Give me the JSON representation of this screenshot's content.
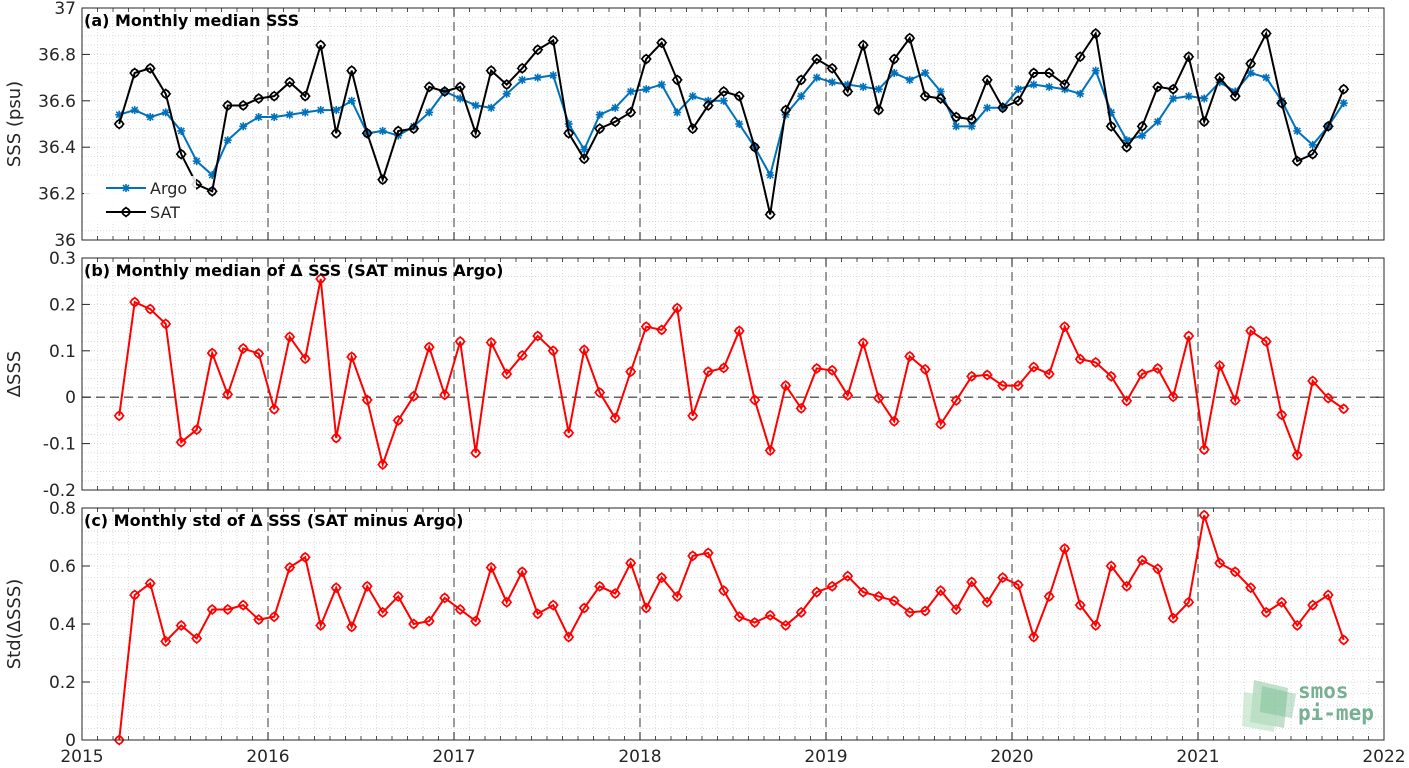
{
  "chart_data": [
    {
      "type": "line",
      "title": "(a) Monthly median SSS",
      "ylabel": "SSS (psu)",
      "xlabel": "",
      "xlim": [
        2015,
        2022
      ],
      "ylim": [
        36,
        37
      ],
      "yticks": [
        36,
        36.2,
        36.4,
        36.6,
        36.8,
        37
      ],
      "ytick_labels": [
        "36",
        "36.2",
        "36.4",
        "36.6",
        "36.8",
        "37"
      ],
      "xticks": [
        2015,
        2016,
        2017,
        2018,
        2019,
        2020,
        2021,
        2022
      ],
      "xtick_labels": [],
      "grid": true,
      "legend": "bottom-left",
      "x_start": 2015.2,
      "x_step": 0.083333,
      "series": [
        {
          "name": "Argo",
          "color": "#0072bd",
          "marker": "asterisk",
          "values": [
            36.54,
            36.56,
            36.53,
            36.55,
            36.47,
            36.34,
            36.28,
            36.43,
            36.49,
            36.53,
            36.53,
            36.54,
            36.55,
            36.56,
            36.56,
            36.6,
            36.46,
            36.47,
            36.45,
            36.49,
            36.55,
            36.64,
            36.61,
            36.58,
            36.57,
            36.63,
            36.69,
            36.7,
            36.71,
            36.5,
            36.39,
            36.54,
            36.57,
            36.64,
            36.65,
            36.67,
            36.55,
            36.62,
            36.6,
            36.6,
            36.5,
            36.4,
            36.28,
            36.54,
            36.62,
            36.7,
            36.68,
            36.67,
            36.66,
            36.65,
            36.72,
            36.69,
            36.72,
            36.64,
            36.49,
            36.49,
            36.57,
            36.57,
            36.65,
            36.67,
            36.66,
            36.65,
            36.63,
            36.73,
            36.55,
            36.43,
            36.45,
            36.51,
            36.61,
            36.62,
            36.61,
            36.68,
            36.64,
            36.72,
            36.7,
            36.6,
            36.47,
            36.41,
            36.49,
            36.59
          ]
        },
        {
          "name": "SAT",
          "color": "#000000",
          "marker": "diamond-circle",
          "values": [
            36.5,
            36.72,
            36.74,
            36.63,
            36.37,
            36.24,
            36.21,
            36.58,
            36.58,
            36.61,
            36.62,
            36.68,
            36.62,
            36.84,
            36.46,
            36.73,
            36.46,
            36.26,
            36.47,
            36.48,
            36.66,
            36.64,
            36.66,
            36.46,
            36.73,
            36.67,
            36.74,
            36.82,
            36.86,
            36.46,
            36.35,
            36.48,
            36.51,
            36.55,
            36.78,
            36.85,
            36.69,
            36.48,
            36.58,
            36.64,
            36.62,
            36.4,
            36.11,
            36.56,
            36.69,
            36.78,
            36.74,
            36.64,
            36.84,
            36.56,
            36.78,
            36.87,
            36.62,
            36.61,
            36.53,
            36.52,
            36.69,
            36.57,
            36.6,
            36.72,
            36.72,
            36.67,
            36.79,
            36.89,
            36.49,
            36.4,
            36.49,
            36.66,
            36.65,
            36.79,
            36.51,
            36.7,
            36.62,
            36.76,
            36.89,
            36.59,
            36.34,
            36.37,
            36.49,
            36.65
          ]
        }
      ]
    },
    {
      "type": "line",
      "title": "(b) Monthly median of Δ SSS (SAT minus Argo)",
      "ylabel": "ΔSSS",
      "xlabel": "",
      "xlim": [
        2015,
        2022
      ],
      "ylim": [
        -0.2,
        0.3
      ],
      "yticks": [
        -0.2,
        -0.1,
        0,
        0.1,
        0.2,
        0.3
      ],
      "ytick_labels": [
        "-0.2",
        "-0.1",
        "0",
        "0.1",
        "0.2",
        "0.3"
      ],
      "xticks": [
        2015,
        2016,
        2017,
        2018,
        2019,
        2020,
        2021,
        2022
      ],
      "xtick_labels": [],
      "grid": true,
      "reference_line": 0,
      "x_start": 2015.2,
      "x_step": 0.083333,
      "series": [
        {
          "name": "",
          "color": "#ff0000",
          "marker": "diamond-circle",
          "values": [
            -0.04,
            0.205,
            0.19,
            0.158,
            -0.097,
            -0.07,
            0.095,
            0.006,
            0.105,
            0.094,
            -0.026,
            0.13,
            0.083,
            0.255,
            -0.088,
            0.087,
            -0.006,
            -0.145,
            -0.05,
            0.002,
            0.108,
            0.005,
            0.12,
            -0.12,
            0.118,
            0.05,
            0.09,
            0.132,
            0.1,
            -0.077,
            0.102,
            0.01,
            -0.045,
            0.055,
            0.152,
            0.145,
            0.192,
            -0.04,
            0.055,
            0.063,
            0.143,
            -0.006,
            -0.115,
            0.025,
            -0.024,
            0.062,
            0.058,
            0.004,
            0.117,
            -0.002,
            -0.052,
            0.088,
            0.06,
            -0.058,
            -0.007,
            0.045,
            0.048,
            0.025,
            0.025,
            0.065,
            0.05,
            0.152,
            0.082,
            0.075,
            0.045,
            -0.008,
            0.05,
            0.062,
            0.001,
            0.132,
            -0.113,
            0.068,
            -0.007,
            0.143,
            0.12,
            -0.038,
            -0.125,
            0.035,
            -0.002,
            -0.025
          ]
        }
      ]
    },
    {
      "type": "line",
      "title": "(c) Monthly std of Δ SSS (SAT minus Argo)",
      "ylabel": "Std(ΔSSS)",
      "xlabel": "",
      "xlim": [
        2015,
        2022
      ],
      "ylim": [
        0,
        0.8
      ],
      "yticks": [
        0,
        0.2,
        0.4,
        0.6,
        0.8
      ],
      "ytick_labels": [
        "0",
        "0.2",
        "0.4",
        "0.6",
        "0.8"
      ],
      "xticks": [
        2015,
        2016,
        2017,
        2018,
        2019,
        2020,
        2021,
        2022
      ],
      "xtick_labels": [
        "2015",
        "2016",
        "2017",
        "2018",
        "2019",
        "2020",
        "2021",
        "2022"
      ],
      "grid": true,
      "x_start": 2015.2,
      "x_step": 0.083333,
      "series": [
        {
          "name": "",
          "color": "#ff0000",
          "marker": "diamond-circle",
          "values": [
            0.0,
            0.5,
            0.54,
            0.34,
            0.395,
            0.35,
            0.45,
            0.45,
            0.465,
            0.415,
            0.425,
            0.595,
            0.63,
            0.395,
            0.525,
            0.39,
            0.53,
            0.44,
            0.495,
            0.4,
            0.41,
            0.49,
            0.45,
            0.41,
            0.595,
            0.475,
            0.58,
            0.435,
            0.465,
            0.355,
            0.455,
            0.53,
            0.505,
            0.61,
            0.455,
            0.56,
            0.495,
            0.635,
            0.645,
            0.515,
            0.425,
            0.405,
            0.43,
            0.395,
            0.44,
            0.51,
            0.53,
            0.565,
            0.51,
            0.495,
            0.48,
            0.44,
            0.445,
            0.515,
            0.45,
            0.545,
            0.475,
            0.56,
            0.535,
            0.355,
            0.495,
            0.66,
            0.465,
            0.395,
            0.6,
            0.53,
            0.62,
            0.59,
            0.42,
            0.475,
            0.775,
            0.61,
            0.58,
            0.525,
            0.44,
            0.475,
            0.395,
            0.465,
            0.5,
            0.345
          ]
        }
      ]
    }
  ],
  "logo": {
    "line1": "smos",
    "line2": "pi-mep",
    "color": "#6aa888"
  },
  "colors": {
    "axes": "#262626",
    "grid": "#d0d0d0",
    "year_line": "#4d4d4d"
  }
}
